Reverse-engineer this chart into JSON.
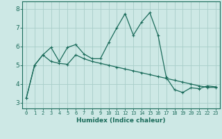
{
  "xlabel": "Humidex (Indice chaleur)",
  "background_color": "#cde8e5",
  "grid_color": "#a8cdc9",
  "line_color": "#1a6b5a",
  "xlim": [
    -0.5,
    23.5
  ],
  "ylim": [
    2.7,
    8.4
  ],
  "xticks": [
    0,
    1,
    2,
    3,
    4,
    5,
    6,
    7,
    8,
    9,
    10,
    11,
    12,
    13,
    14,
    15,
    16,
    17,
    18,
    19,
    20,
    21,
    22,
    23
  ],
  "yticks": [
    3,
    4,
    5,
    6,
    7,
    8
  ],
  "line1_x": [
    0,
    1,
    2,
    3,
    4,
    5,
    6,
    7,
    8,
    9,
    10,
    11,
    12,
    13,
    14,
    15,
    16,
    17,
    18,
    19,
    20,
    21,
    22,
    23
  ],
  "line1_y": [
    3.25,
    5.0,
    5.55,
    5.95,
    5.2,
    5.95,
    6.1,
    5.6,
    5.35,
    5.35,
    6.2,
    7.0,
    7.75,
    6.6,
    7.3,
    7.8,
    6.6,
    4.35,
    3.7,
    3.55,
    3.8,
    3.75,
    3.9,
    3.85
  ],
  "line2_x": [
    0,
    1,
    2,
    3,
    4,
    5,
    6,
    7,
    8,
    9,
    10,
    11,
    12,
    13,
    14,
    15,
    16,
    17,
    18,
    19,
    20,
    21,
    22,
    23
  ],
  "line2_y": [
    3.25,
    5.0,
    5.55,
    5.2,
    5.1,
    5.05,
    5.55,
    5.35,
    5.2,
    5.1,
    5.0,
    4.9,
    4.8,
    4.7,
    4.6,
    4.5,
    4.4,
    4.3,
    4.2,
    4.1,
    4.0,
    3.9,
    3.82,
    3.82
  ]
}
